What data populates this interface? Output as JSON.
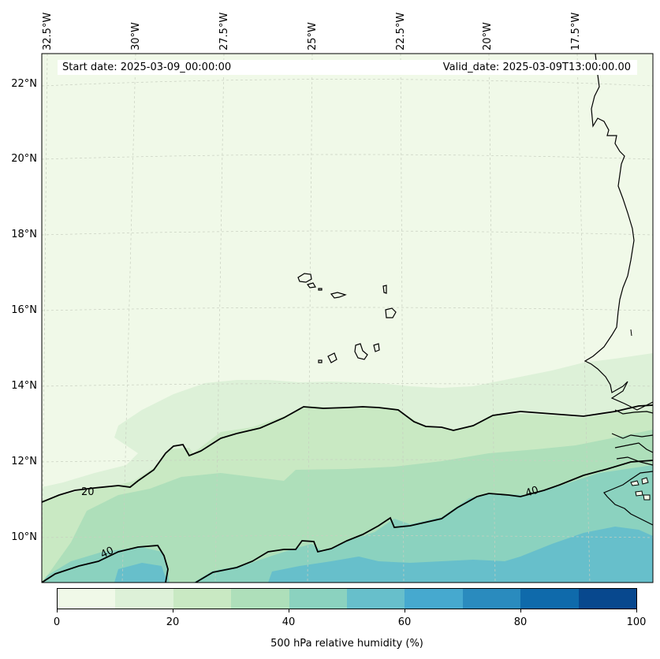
{
  "header": {
    "start_date": "Start date: 2025-03-09_00:00:00",
    "valid_date": "Valid_date: 2025-03-09T13:00:00.00"
  },
  "longitude_labels": [
    "32.5°W",
    "30°W",
    "27.5°W",
    "25°W",
    "22.5°W",
    "20°W",
    "17.5°W"
  ],
  "latitude_labels": [
    "22°N",
    "20°N",
    "18°N",
    "16°N",
    "14°N",
    "12°N",
    "10°N"
  ],
  "contours": {
    "label_20": "20",
    "label_40a": "40",
    "label_40b": "40"
  },
  "colorbar": {
    "label": "500 hPa relative humidity (%)",
    "ticks": [
      "0",
      "20",
      "40",
      "60",
      "80",
      "100"
    ],
    "colors": [
      "#f0f9e8",
      "#ddf1d8",
      "#c9e9c3",
      "#aedfba",
      "#8bd2bf",
      "#67bfcb",
      "#46a9cf",
      "#2a8bbe",
      "#0f6aab",
      "#08488e"
    ]
  },
  "fill_colors": {
    "lt10": "#f0f9e8",
    "10_20": "#ddf1d8",
    "20_30": "#c9e9c3",
    "30_40": "#aedfba",
    "40_50": "#8bd2bf",
    "50_60": "#67bfcb"
  }
}
